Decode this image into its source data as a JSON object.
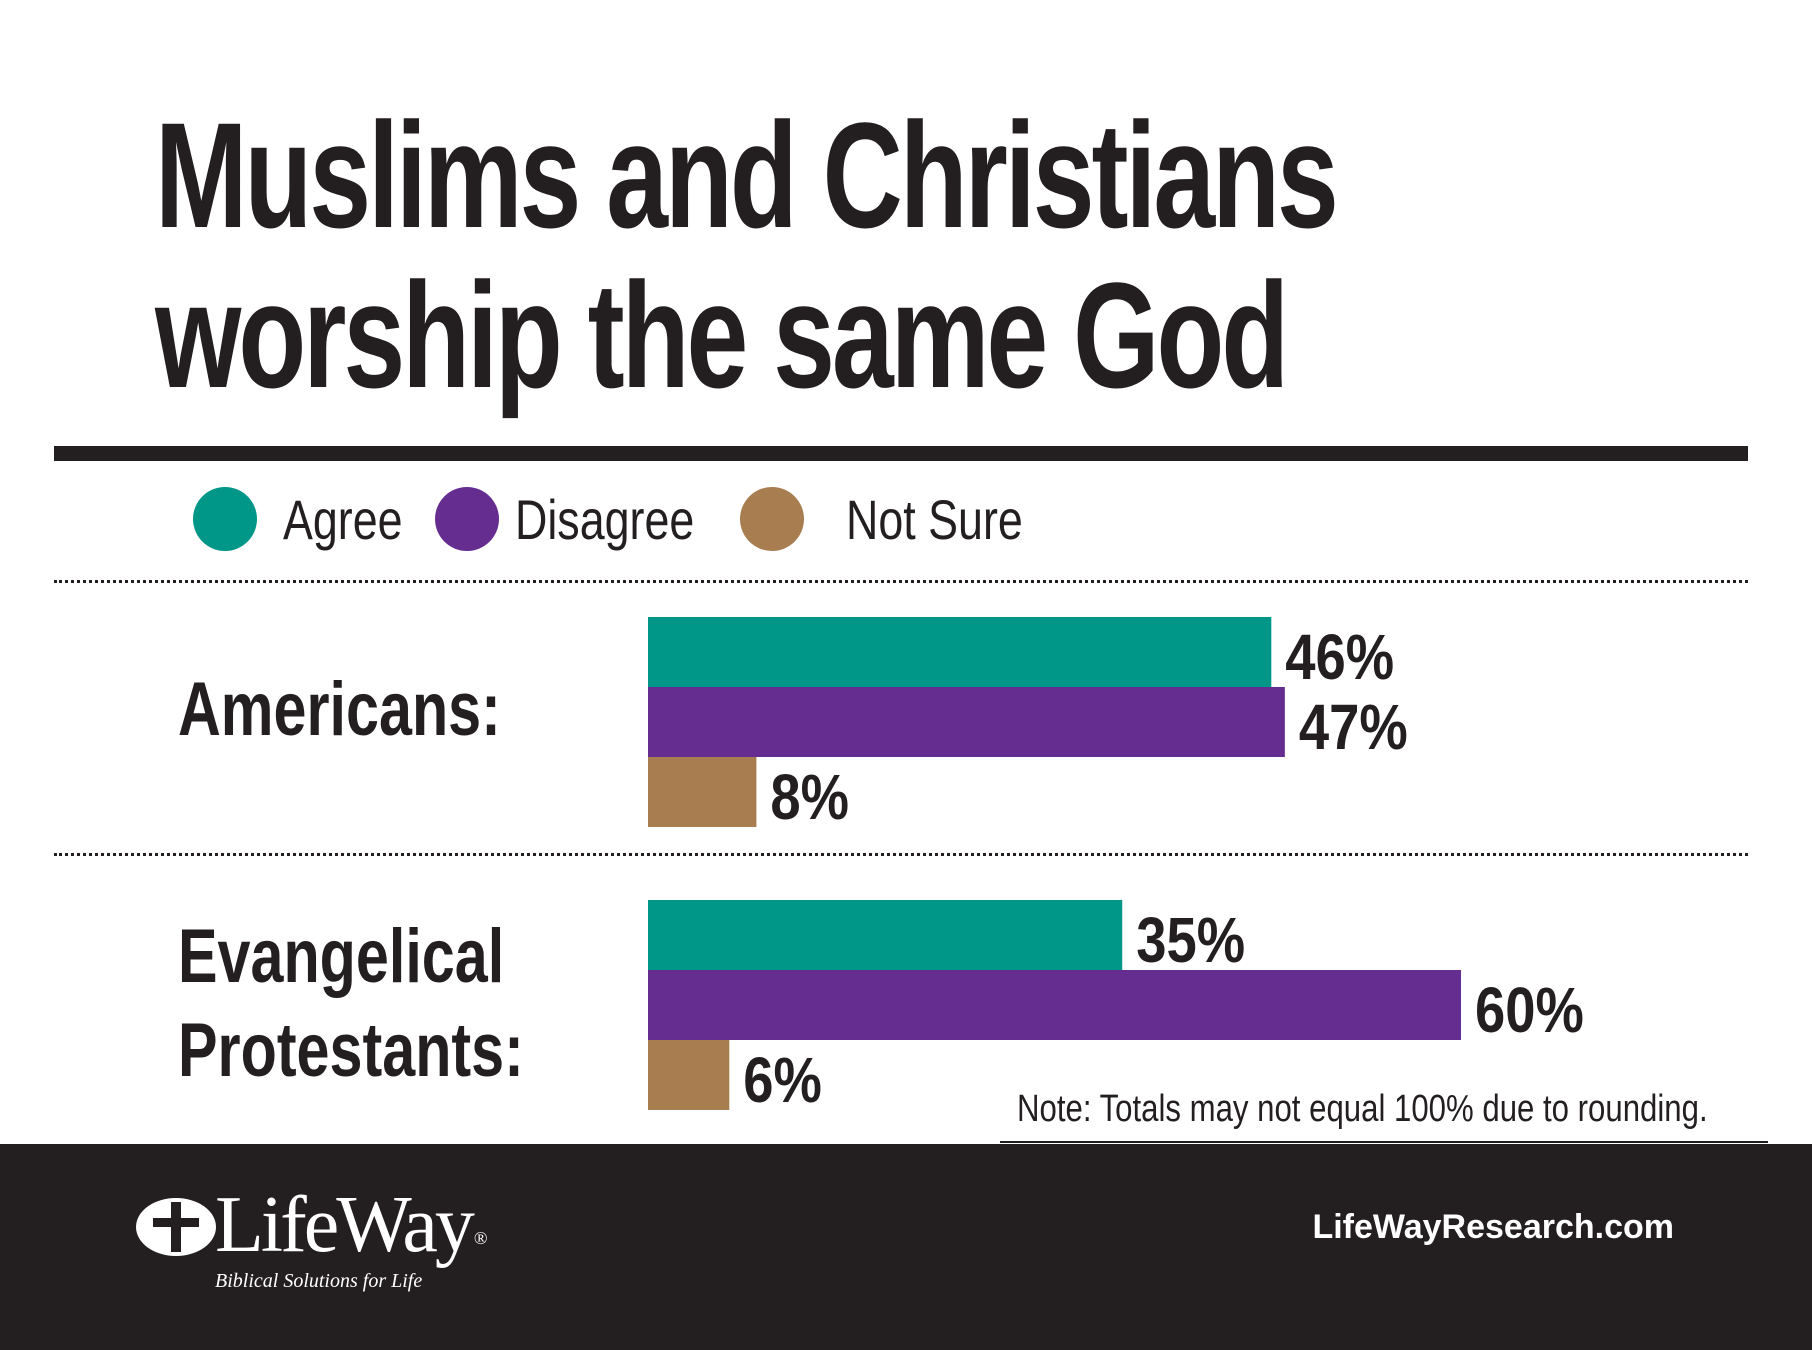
{
  "chart_data": {
    "type": "bar",
    "orientation": "horizontal",
    "title_lines": [
      "Muslims and Christians",
      "worship the same God"
    ],
    "legend": [
      {
        "name": "Agree",
        "color": "#009688"
      },
      {
        "name": "Disagree",
        "color": "#662d91"
      },
      {
        "name": "Not Sure",
        "color": "#a87d50"
      }
    ],
    "groups": [
      {
        "label_lines": [
          "Americans:"
        ],
        "bars": [
          {
            "series": "Agree",
            "value": 46,
            "label": "46%"
          },
          {
            "series": "Disagree",
            "value": 47,
            "label": "47%"
          },
          {
            "series": "Not Sure",
            "value": 8,
            "label": "8%"
          }
        ]
      },
      {
        "label_lines": [
          "Evangelical",
          "Protestants:"
        ],
        "bars": [
          {
            "series": "Agree",
            "value": 35,
            "label": "35%"
          },
          {
            "series": "Disagree",
            "value": 60,
            "label": "60%"
          },
          {
            "series": "Not Sure",
            "value": 6,
            "label": "6%"
          }
        ]
      }
    ],
    "xlim": [
      0,
      100
    ],
    "grid": false,
    "legend_position": "top-left"
  },
  "note": "Note: Totals may not equal 100% due to rounding.",
  "footer": {
    "logo_text": "LifeWay",
    "logo_reg": "®",
    "tagline": "Biblical Solutions for Life",
    "website": "LifeWayResearch.com"
  }
}
